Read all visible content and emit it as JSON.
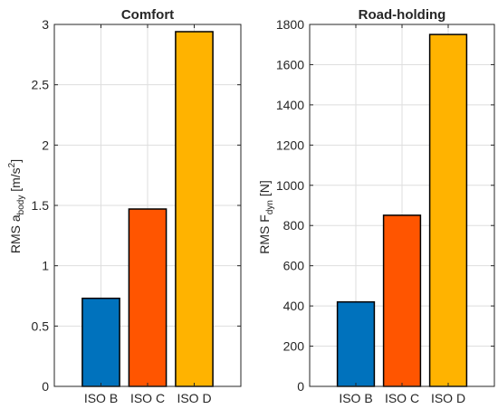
{
  "chart_data": [
    {
      "type": "bar",
      "title": "Comfort",
      "ylabel": {
        "prefix": "RMS a",
        "sub": "body",
        "unit_open": " [m/s",
        "sup": "2",
        "unit_close": "]"
      },
      "categories": [
        "ISO B",
        "ISO C",
        "ISO D"
      ],
      "values": [
        0.73,
        1.47,
        2.94
      ],
      "colors": [
        "#0072BD",
        "#FF5500",
        "#FFB300"
      ],
      "ylim": [
        0,
        3
      ],
      "yticks": [
        0,
        0.5,
        1,
        1.5,
        2,
        2.5,
        3
      ],
      "ytick_labels": [
        "0",
        "0.5",
        "1",
        "1.5",
        "2",
        "2.5",
        "3"
      ],
      "grid": true
    },
    {
      "type": "bar",
      "title": "Road-holding",
      "ylabel": {
        "prefix": "RMS F",
        "sub": "dyn",
        "unit_open": " [N]",
        "sup": "",
        "unit_close": ""
      },
      "categories": [
        "ISO B",
        "ISO C",
        "ISO D"
      ],
      "values": [
        420,
        851,
        1750
      ],
      "colors": [
        "#0072BD",
        "#FF5500",
        "#FFB300"
      ],
      "ylim": [
        0,
        1800
      ],
      "yticks": [
        0,
        200,
        400,
        600,
        800,
        1000,
        1200,
        1400,
        1600,
        1800
      ],
      "ytick_labels": [
        "0",
        "200",
        "400",
        "600",
        "800",
        "1000",
        "1200",
        "1400",
        "1600",
        "1800"
      ],
      "grid": true
    }
  ]
}
